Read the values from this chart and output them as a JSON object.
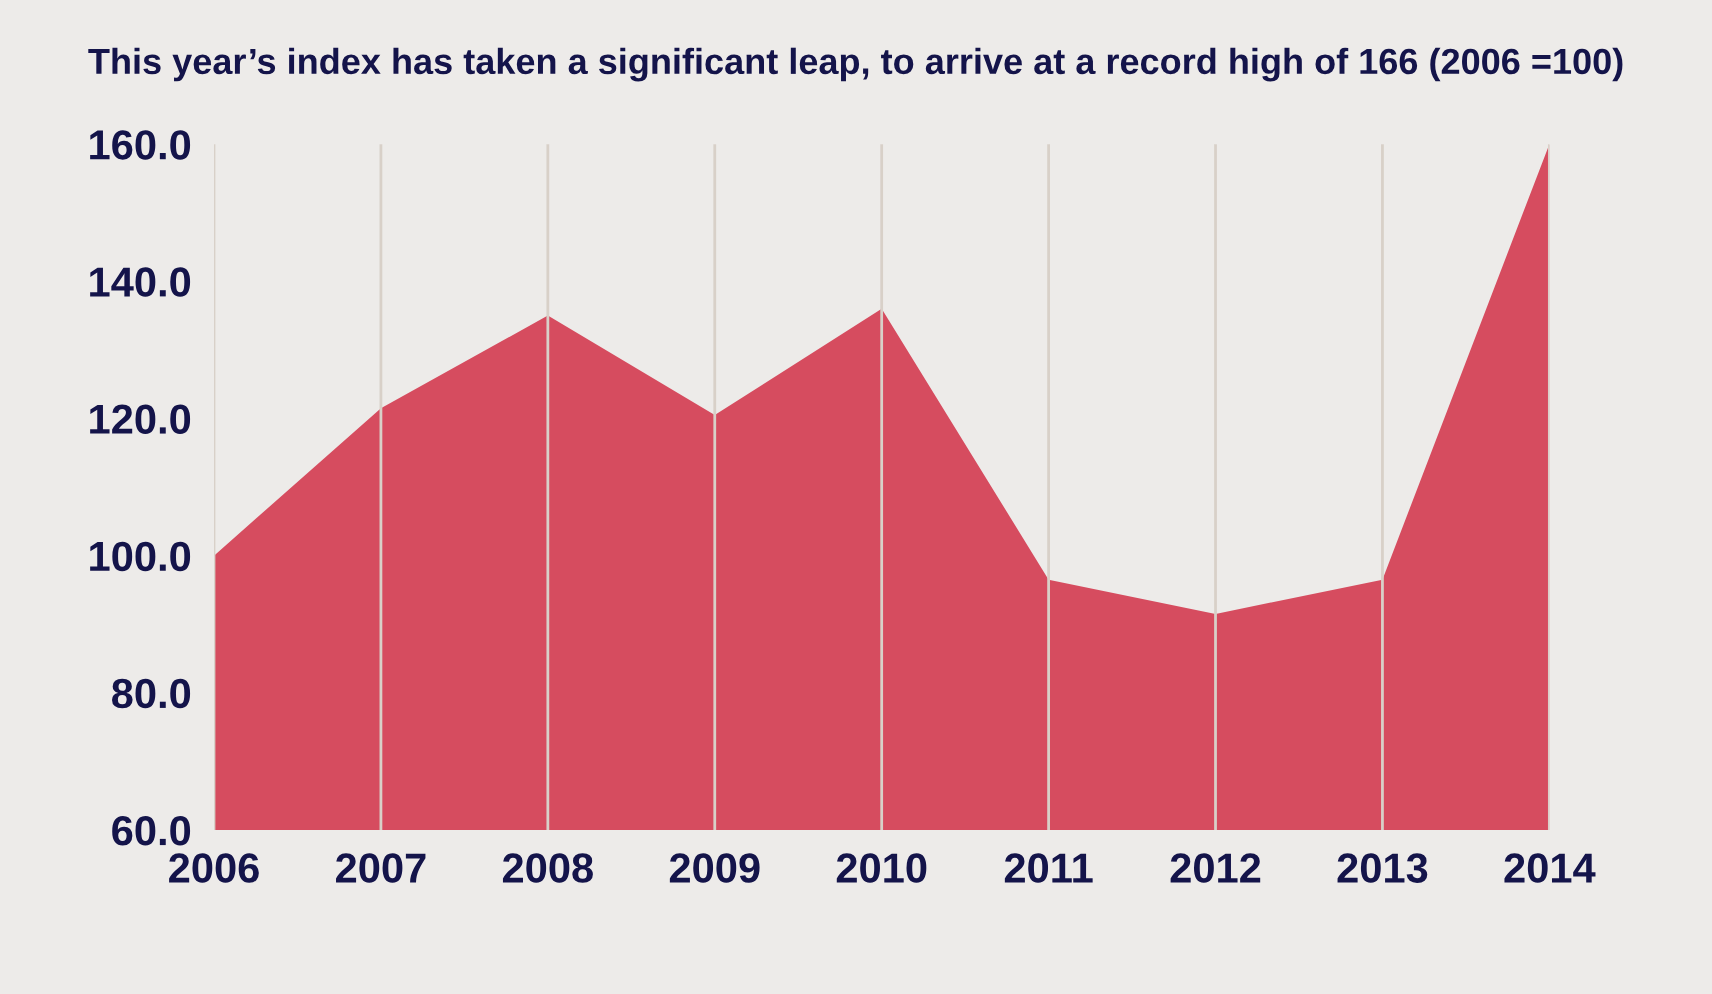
{
  "chart_data": {
    "type": "area",
    "title": "This year’s index has taken a significant leap, to arrive at a record high of 166 (2006 =100)",
    "categories": [
      "2006",
      "2007",
      "2008",
      "2009",
      "2010",
      "2011",
      "2012",
      "2013",
      "2014"
    ],
    "series": [
      {
        "color": "#d64c5f",
        "values": [
          100,
          121.5,
          135,
          120.5,
          136,
          96.5,
          91.5,
          96.5,
          160
        ]
      }
    ],
    "ylim": [
      60,
      160
    ],
    "yticks": [
      {
        "value": 60,
        "label": "60.0"
      },
      {
        "value": 80,
        "label": "80.0"
      },
      {
        "value": 100,
        "label": "100.0"
      },
      {
        "value": 120,
        "label": "120.0"
      },
      {
        "value": 140,
        "label": "140.0"
      },
      {
        "value": 160,
        "label": "160.0"
      }
    ],
    "grid": "x",
    "legend": false
  }
}
